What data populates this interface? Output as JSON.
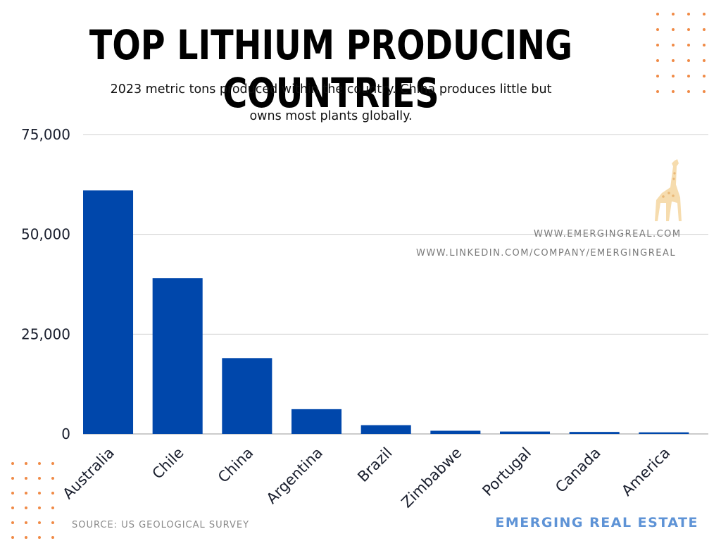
{
  "header": {
    "title": "TOP LITHIUM PRODUCING COUNTRIES",
    "subtitle_line1": "2023 metric tons produced within the country. China produces little but",
    "subtitle_line2": "owns most plants globally."
  },
  "watermarks": {
    "website": "WWW.EMERGINGREAL.COM",
    "linkedin": "WWW.LINKEDIN.COM/COMPANY/EMERGINGREAL"
  },
  "footer": {
    "source": "SOURCE: US GEOLOGICAL SURVEY",
    "brand": "EMERGING REAL ESTATE"
  },
  "colors": {
    "bar": "#0047ab",
    "grid": "#cfcfcf",
    "accent_dots": "#f08a46",
    "brand": "#5e93d6"
  },
  "icons": [
    "giraffe-logo-icon",
    "dot-grid-decoration"
  ],
  "chart_data": {
    "type": "bar",
    "title": "TOP LITHIUM PRODUCING COUNTRIES",
    "categories": [
      "Australia",
      "Chile",
      "China",
      "Argentina",
      "Brazil",
      "Zimbabwe",
      "Portugal",
      "Canada",
      "America"
    ],
    "values": [
      61000,
      39000,
      19000,
      6200,
      2200,
      800,
      600,
      500,
      400
    ],
    "ylim": [
      0,
      75000
    ],
    "yticks": [
      0,
      25000,
      50000,
      75000
    ],
    "ytick_labels": [
      "0",
      "25,000",
      "50,000",
      "75,000"
    ],
    "xlabel": "",
    "ylabel": "",
    "grid": true,
    "legend": "none"
  }
}
